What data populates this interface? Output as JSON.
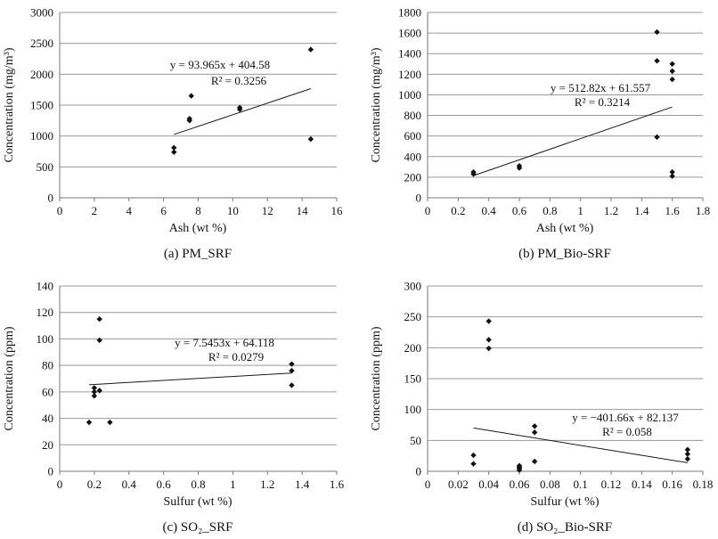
{
  "chart_data": [
    {
      "type": "scatter",
      "panel": "a",
      "caption": "(a) PM_SRF",
      "xlabel": "Ash (wt %)",
      "ylabel": "Concentration (mg/m³)",
      "xlim": [
        0,
        16
      ],
      "ylim": [
        0,
        3000
      ],
      "xticks": [
        "0",
        "2",
        "4",
        "6",
        "8",
        "10",
        "12",
        "14",
        "16"
      ],
      "yticks": [
        "0",
        "500",
        "1000",
        "1500",
        "2000",
        "2500",
        "3000"
      ],
      "x": [
        6.6,
        6.6,
        7.5,
        7.5,
        7.6,
        10.4,
        10.4,
        14.5,
        14.5
      ],
      "y": [
        740,
        810,
        1250,
        1280,
        1650,
        1430,
        1460,
        950,
        2400
      ],
      "trendline": {
        "slope": 93.965,
        "intercept": 404.58,
        "x_range": [
          6.6,
          14.5
        ]
      },
      "equation": "y = 93.965x + 404.58",
      "r2": "R² = 0.3256",
      "grid": "horizontal"
    },
    {
      "type": "scatter",
      "panel": "b",
      "caption": "(b) PM_Bio-SRF",
      "xlabel": "Ash (wt %)",
      "ylabel": "Concentration (mg/m³)",
      "xlim": [
        0,
        1.8
      ],
      "ylim": [
        0,
        1800
      ],
      "xticks": [
        "0",
        "0.2",
        "0.4",
        "0.6",
        "0.8",
        "1",
        "1.2",
        "1.4",
        "1.6",
        "1.8"
      ],
      "yticks": [
        "0",
        "200",
        "400",
        "600",
        "800",
        "1000",
        "1200",
        "1400",
        "1600",
        "1800"
      ],
      "x": [
        0.3,
        0.3,
        0.6,
        0.6,
        1.5,
        1.5,
        1.5,
        1.6,
        1.6,
        1.6,
        1.6,
        1.6
      ],
      "y": [
        230,
        250,
        290,
        310,
        590,
        1330,
        1610,
        210,
        250,
        1150,
        1230,
        1300
      ],
      "trendline": {
        "slope": 512.82,
        "intercept": 61.557,
        "x_range": [
          0.3,
          1.6
        ]
      },
      "equation": "y = 512.82x + 61.557",
      "r2": "R² = 0.3214",
      "grid": "horizontal"
    },
    {
      "type": "scatter",
      "panel": "c",
      "caption": "(c) SO₂_SRF",
      "xlabel": "Sulfur (wt %)",
      "ylabel": "Concentration (ppm)",
      "xlim": [
        0,
        1.6
      ],
      "ylim": [
        0,
        140
      ],
      "xticks": [
        "0",
        "0.2",
        "0.4",
        "0.6",
        "0.8",
        "1",
        "1.2",
        "1.4",
        "1.6"
      ],
      "yticks": [
        "0",
        "20",
        "40",
        "60",
        "80",
        "100",
        "120",
        "140"
      ],
      "x": [
        0.17,
        0.2,
        0.2,
        0.2,
        0.23,
        0.23,
        0.23,
        0.29,
        1.34,
        1.34,
        1.34
      ],
      "y": [
        37,
        57,
        60,
        63,
        61,
        99,
        115,
        37,
        65,
        76,
        81
      ],
      "trendline": {
        "slope": 7.5453,
        "intercept": 64.118,
        "x_range": [
          0.17,
          1.34
        ]
      },
      "equation": "y = 7.5453x + 64.118",
      "r2": "R² = 0.0279",
      "grid": "horizontal"
    },
    {
      "type": "scatter",
      "panel": "d",
      "caption": "(d) SO₂_Bio-SRF",
      "xlabel": "Sulfur (wt %)",
      "ylabel": "Concentration (ppm)",
      "xlim": [
        0,
        0.18
      ],
      "ylim": [
        0,
        300
      ],
      "xticks": [
        "0",
        "0.02",
        "0.04",
        "0.06",
        "0.08",
        "0.1",
        "0.12",
        "0.14",
        "0.16",
        "0.18"
      ],
      "yticks": [
        "0",
        "50",
        "100",
        "150",
        "200",
        "250",
        "300"
      ],
      "x": [
        0.03,
        0.03,
        0.04,
        0.04,
        0.04,
        0.06,
        0.06,
        0.06,
        0.06,
        0.07,
        0.07,
        0.07,
        0.17,
        0.17,
        0.17
      ],
      "y": [
        12,
        26,
        199,
        213,
        243,
        2,
        5,
        7,
        9,
        16,
        63,
        73,
        20,
        28,
        35
      ],
      "trendline": {
        "slope": -401.66,
        "intercept": 82.137,
        "x_range": [
          0.03,
          0.17
        ]
      },
      "equation": "y = −401.66x + 82.137",
      "r2": "R² = 0.058",
      "grid": "horizontal"
    }
  ],
  "colors": {
    "marker": "#111111",
    "grid": "#9a9a9a",
    "axis": "#777777",
    "trend": "#1a1a1a"
  }
}
